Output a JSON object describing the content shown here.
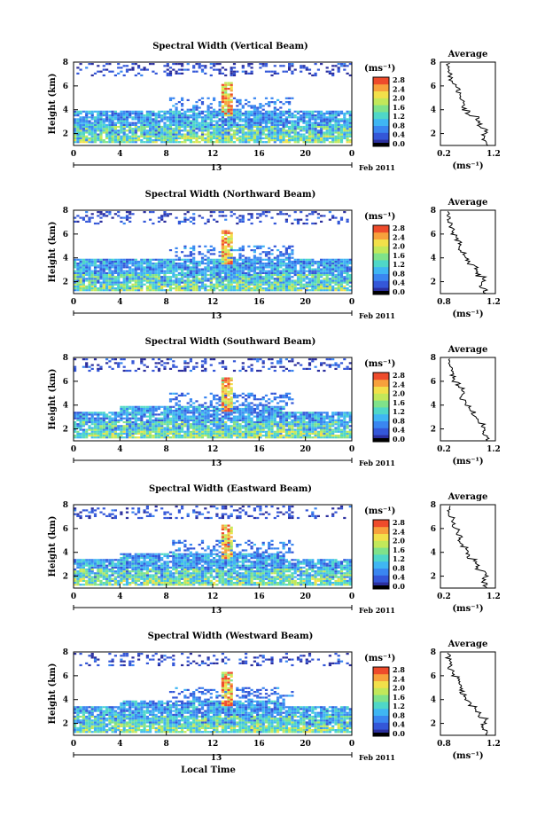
{
  "figure": {
    "xlabel": "Local Time",
    "date_label": "Feb 2011",
    "day_label": "13",
    "unit_label": "(ms⁻¹)",
    "avg_title": "Average",
    "colorbar_ticks": [
      "2.8",
      "2.4",
      "2.0",
      "1.6",
      "1.2",
      "0.8",
      "0.4",
      "0.0"
    ],
    "colormap": [
      "#2b2f9e",
      "#3457d8",
      "#3a86f0",
      "#3fb6f3",
      "#4fd7c8",
      "#7fe28a",
      "#c2e85a",
      "#f2e04a",
      "#f7a13c",
      "#ee4b2b"
    ]
  },
  "chart_data": [
    {
      "type": "heatmap",
      "title": "Spectral Width (Vertical Beam)",
      "xlabel": "",
      "ylabel": "Height (km)",
      "x_ticks": [
        "0",
        "4",
        "8",
        "12",
        "16",
        "20",
        "0"
      ],
      "xlim": [
        0,
        24
      ],
      "y_ticks": [
        "2",
        "4",
        "6",
        "8"
      ],
      "ylim": [
        1,
        8
      ],
      "zlim": [
        0,
        2.8
      ],
      "average_profile": {
        "title": "Average",
        "xlabel": "(ms⁻¹)",
        "x_ticks": [
          "0.2",
          "1.2"
        ],
        "xlim": [
          0,
          1.4
        ],
        "y_ticks": [
          "2",
          "4",
          "6",
          "8"
        ],
        "height_km": [
          1.0,
          1.5,
          2.0,
          2.5,
          3.0,
          3.5,
          4.0,
          4.5,
          5.0,
          5.5,
          6.0,
          6.5,
          7.0,
          7.5
        ],
        "width": [
          1.2,
          1.1,
          1.15,
          1.0,
          0.95,
          0.7,
          0.6,
          0.55,
          0.55,
          0.45,
          0.35,
          0.25,
          0.25,
          0.2
        ]
      }
    },
    {
      "type": "heatmap",
      "title": "Spectral Width (Northward Beam)",
      "xlabel": "",
      "ylabel": "Height (km)",
      "x_ticks": [
        "0",
        "4",
        "8",
        "12",
        "16",
        "20",
        "0"
      ],
      "xlim": [
        0,
        24
      ],
      "y_ticks": [
        "2",
        "4",
        "6",
        "8"
      ],
      "ylim": [
        1,
        8
      ],
      "zlim": [
        0,
        2.8
      ],
      "average_profile": {
        "title": "Average",
        "xlabel": "(ms⁻¹)",
        "x_ticks": [
          "0.8",
          "1.2"
        ],
        "xlim": [
          0,
          1.4
        ],
        "y_ticks": [
          "2",
          "4",
          "6",
          "8"
        ],
        "height_km": [
          1.0,
          1.5,
          2.0,
          2.5,
          3.0,
          3.5,
          4.0,
          4.5,
          5.0,
          5.5,
          6.0,
          6.5,
          7.0,
          7.5
        ],
        "width": [
          1.15,
          1.05,
          1.1,
          0.95,
          0.9,
          0.7,
          0.6,
          0.5,
          0.5,
          0.4,
          0.3,
          0.25,
          0.2,
          0.2
        ]
      }
    },
    {
      "type": "heatmap",
      "title": "Spectral Width (Southward Beam)",
      "xlabel": "",
      "ylabel": "Height (km)",
      "x_ticks": [
        "0",
        "4",
        "8",
        "12",
        "16",
        "20",
        "0"
      ],
      "xlim": [
        0,
        24
      ],
      "y_ticks": [
        "2",
        "4",
        "6",
        "8"
      ],
      "ylim": [
        1,
        8
      ],
      "zlim": [
        0,
        2.8
      ],
      "average_profile": {
        "title": "Average",
        "xlabel": "(ms⁻¹)",
        "x_ticks": [
          "0.2",
          "1.2"
        ],
        "xlim": [
          0,
          1.4
        ],
        "y_ticks": [
          "2",
          "4",
          "6",
          "8"
        ],
        "height_km": [
          1.0,
          1.5,
          2.0,
          2.5,
          3.0,
          3.5,
          4.0,
          4.5,
          5.0,
          5.5,
          6.0,
          6.5,
          7.0,
          7.5
        ],
        "width": [
          1.2,
          1.1,
          1.1,
          0.95,
          0.85,
          0.75,
          0.65,
          0.5,
          0.55,
          0.45,
          0.35,
          0.3,
          0.25,
          0.2
        ]
      }
    },
    {
      "type": "heatmap",
      "title": "Spectral Width (Eastward Beam)",
      "xlabel": "",
      "ylabel": "Height (km)",
      "x_ticks": [
        "0",
        "4",
        "8",
        "12",
        "16",
        "20",
        "0"
      ],
      "xlim": [
        0,
        24
      ],
      "y_ticks": [
        "2",
        "4",
        "6",
        "8"
      ],
      "ylim": [
        1,
        8
      ],
      "zlim": [
        0,
        2.8
      ],
      "average_profile": {
        "title": "Average",
        "xlabel": "(ms⁻¹)",
        "x_ticks": [
          "0.2",
          "1.2"
        ],
        "xlim": [
          0,
          1.4
        ],
        "y_ticks": [
          "2",
          "4",
          "6",
          "8"
        ],
        "height_km": [
          1.0,
          1.5,
          2.0,
          2.5,
          3.0,
          3.5,
          4.0,
          4.5,
          5.0,
          5.5,
          6.0,
          6.5,
          7.0,
          7.5
        ],
        "width": [
          1.15,
          1.1,
          1.15,
          0.95,
          0.9,
          0.7,
          0.65,
          0.55,
          0.5,
          0.45,
          0.35,
          0.3,
          0.2,
          0.2
        ]
      }
    },
    {
      "type": "heatmap",
      "title": "Spectral Width (Westward Beam)",
      "xlabel": "Local Time",
      "ylabel": "Height (km)",
      "x_ticks": [
        "0",
        "4",
        "8",
        "12",
        "16",
        "20",
        "0"
      ],
      "xlim": [
        0,
        24
      ],
      "y_ticks": [
        "2",
        "4",
        "6",
        "8"
      ],
      "ylim": [
        1,
        8
      ],
      "zlim": [
        0,
        2.8
      ],
      "average_profile": {
        "title": "Average",
        "xlabel": "(ms⁻¹)",
        "x_ticks": [
          "0.8",
          "1.2"
        ],
        "xlim": [
          0,
          1.4
        ],
        "y_ticks": [
          "2",
          "4",
          "6",
          "8"
        ],
        "height_km": [
          1.0,
          1.5,
          2.0,
          2.5,
          3.0,
          3.5,
          4.0,
          4.5,
          5.0,
          5.5,
          6.0,
          6.5,
          7.0,
          7.5
        ],
        "width": [
          1.2,
          1.1,
          1.15,
          1.0,
          0.9,
          0.75,
          0.6,
          0.55,
          0.5,
          0.45,
          0.35,
          0.25,
          0.25,
          0.2
        ]
      }
    }
  ]
}
